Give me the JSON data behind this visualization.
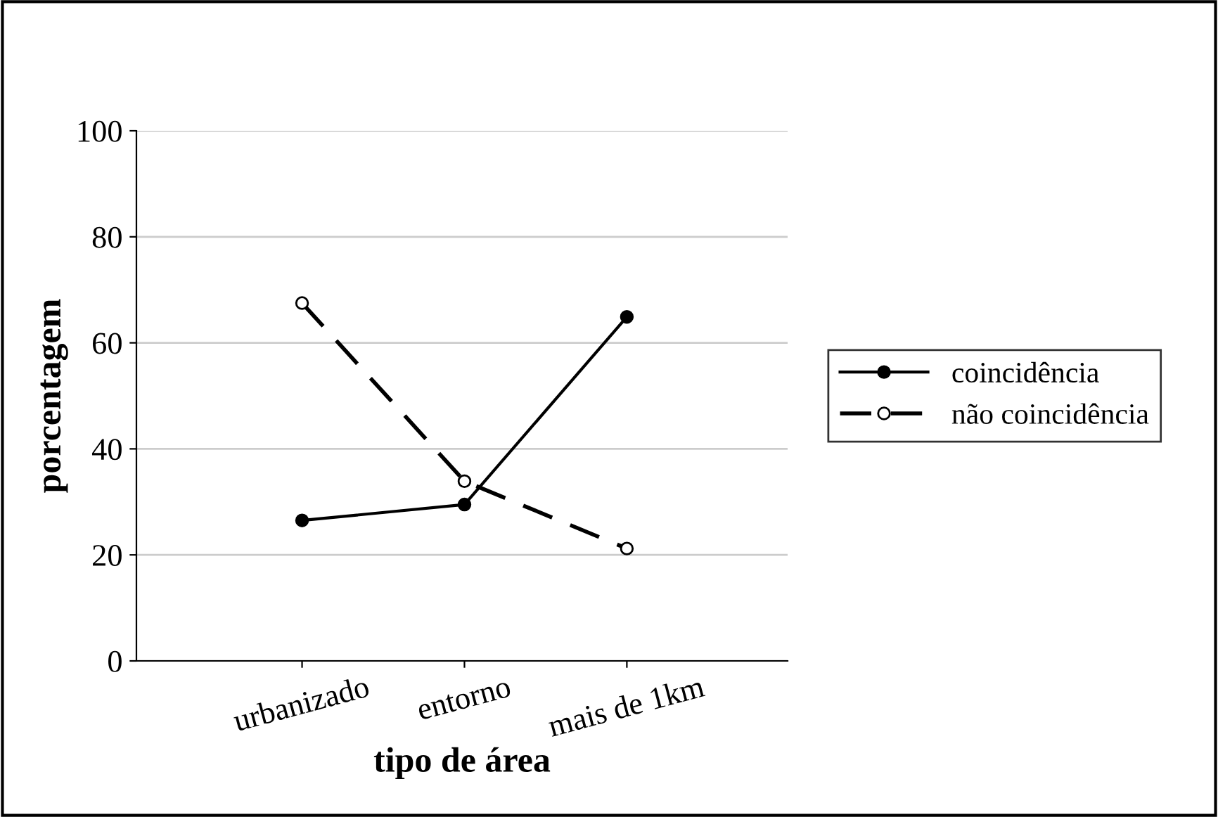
{
  "chart_data": {
    "type": "line",
    "xlabel": "tipo de área",
    "ylabel": "porcentagem",
    "categories": [
      "urbanizado",
      "entorno",
      "mais de 1km"
    ],
    "series": [
      {
        "name": "coincidência",
        "color": "#000000",
        "values": [
          26.5,
          29.5,
          64.9
        ],
        "marker": "circle",
        "line_style": "solid"
      },
      {
        "name": "não coincidência",
        "color": "#000000",
        "values": [
          67.5,
          33.9,
          21.2
        ],
        "marker": "circle",
        "line_style": "dashed"
      }
    ],
    "ylim": [
      0,
      100
    ],
    "yticks": [
      0,
      20,
      40,
      60,
      80,
      100
    ],
    "grid": "y",
    "legend": "right"
  }
}
